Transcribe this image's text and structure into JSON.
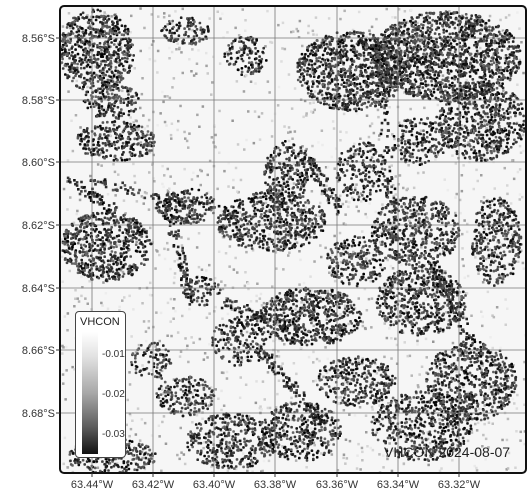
{
  "map": {
    "stamp": "VHCON 2024-08-07",
    "y_ticks": [
      "8.56°S",
      "8.58°S",
      "8.60°S",
      "8.62°S",
      "8.64°S",
      "8.66°S",
      "8.68°S"
    ],
    "x_ticks": [
      "63.44°W",
      "63.42°W",
      "63.40°W",
      "63.38°W",
      "63.36°W",
      "63.34°W",
      "63.32°W"
    ],
    "legend": {
      "title": "VHCON",
      "labels": [
        "-0.01",
        "-0.02",
        "-0.03"
      ]
    },
    "colors": {
      "grid": "#777777",
      "frame": "#111111",
      "low": "#111111",
      "high": "#ffffff"
    }
  }
}
